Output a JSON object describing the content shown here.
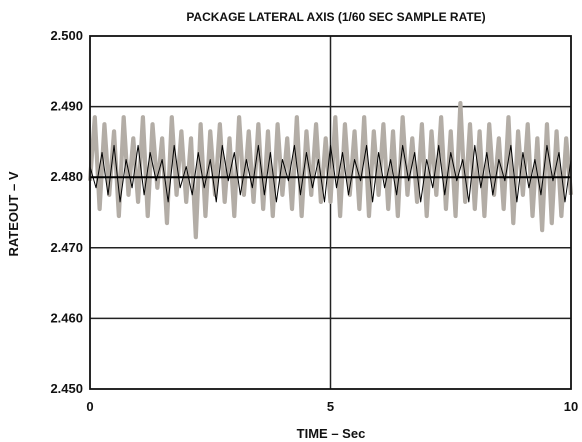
{
  "chart_data": {
    "type": "line",
    "title": "PACKAGE LATERAL AXIS (1/60 SEC SAMPLE RATE)",
    "xlabel": "TIME – Sec",
    "ylabel": "RATEOUT – V",
    "xlim": [
      0,
      10
    ],
    "ylim": [
      2.45,
      2.5
    ],
    "x_ticks": [
      0,
      5,
      10
    ],
    "x_tick_labels": [
      "0",
      "5",
      "10"
    ],
    "y_ticks": [
      2.45,
      2.46,
      2.47,
      2.48,
      2.49,
      2.5
    ],
    "y_tick_labels": [
      "2.450",
      "2.460",
      "2.470",
      "2.480",
      "2.490",
      "2.500"
    ],
    "grid": true,
    "legend": "none",
    "series": [
      {
        "color": "#b3ada6",
        "x": [
          0,
          0.1,
          0.2,
          0.3,
          0.4,
          0.5,
          0.6,
          0.7,
          0.8,
          0.9,
          1,
          1.1,
          1.2,
          1.3,
          1.4,
          1.5,
          1.6,
          1.7,
          1.8,
          1.9,
          2,
          2.1,
          2.2,
          2.3,
          2.4,
          2.5,
          2.6,
          2.7,
          2.8,
          2.9,
          3,
          3.1,
          3.2,
          3.3,
          3.4,
          3.5,
          3.6,
          3.7,
          3.8,
          3.9,
          4,
          4.1,
          4.2,
          4.3,
          4.4,
          4.5,
          4.6,
          4.7,
          4.8,
          4.9,
          5,
          5.1,
          5.2,
          5.3,
          5.4,
          5.5,
          5.6,
          5.7,
          5.8,
          5.9,
          6,
          6.1,
          6.2,
          6.3,
          6.4,
          6.5,
          6.6,
          6.7,
          6.8,
          6.9,
          7,
          7.1,
          7.2,
          7.3,
          7.4,
          7.5,
          7.6,
          7.7,
          7.8,
          7.9,
          8,
          8.1,
          8.2,
          8.3,
          8.4,
          8.5,
          8.6,
          8.7,
          8.8,
          8.9,
          9,
          9.1,
          9.2,
          9.3,
          9.4,
          9.5,
          9.6,
          9.7,
          9.8,
          9.9,
          10
        ],
        "values": [
          2.4795,
          2.4885,
          2.4755,
          2.4875,
          2.4775,
          2.4865,
          2.4745,
          2.4885,
          2.4775,
          2.4855,
          2.4765,
          2.4885,
          2.4745,
          2.4875,
          2.4785,
          2.4855,
          2.4735,
          2.4885,
          2.4775,
          2.4865,
          2.4765,
          2.4855,
          2.4715,
          2.4875,
          2.4745,
          2.4865,
          2.4775,
          2.4875,
          2.4765,
          2.4855,
          2.4745,
          2.4885,
          2.4775,
          2.4865,
          2.4765,
          2.4875,
          2.4755,
          2.4865,
          2.4745,
          2.4875,
          2.4775,
          2.4855,
          2.4755,
          2.4885,
          2.4745,
          2.4865,
          2.4775,
          2.4875,
          2.4765,
          2.4855,
          2.4765,
          2.4885,
          2.4745,
          2.4875,
          2.4775,
          2.4865,
          2.4755,
          2.4885,
          2.4745,
          2.4865,
          2.4775,
          2.4875,
          2.4755,
          2.4865,
          2.4745,
          2.4885,
          2.4775,
          2.4855,
          2.4765,
          2.4875,
          2.4745,
          2.4865,
          2.4775,
          2.4885,
          2.4755,
          2.4865,
          2.4745,
          2.4905,
          2.4765,
          2.4875,
          2.4755,
          2.4865,
          2.4745,
          2.4875,
          2.4775,
          2.4855,
          2.4755,
          2.4885,
          2.4735,
          2.4865,
          2.4775,
          2.4875,
          2.4745,
          2.4855,
          2.4725,
          2.4875,
          2.4735,
          2.4865,
          2.4745,
          2.4855,
          2.4775
        ]
      },
      {
        "color": "#000000",
        "x": [
          0,
          0.125,
          0.25,
          0.375,
          0.5,
          0.625,
          0.75,
          0.875,
          1,
          1.125,
          1.25,
          1.375,
          1.5,
          1.625,
          1.75,
          1.875,
          2,
          2.125,
          2.25,
          2.375,
          2.5,
          2.625,
          2.75,
          2.875,
          3,
          3.125,
          3.25,
          3.375,
          3.5,
          3.625,
          3.75,
          3.875,
          4,
          4.125,
          4.25,
          4.375,
          4.5,
          4.625,
          4.75,
          4.875,
          5,
          5.125,
          5.25,
          5.375,
          5.5,
          5.625,
          5.75,
          5.875,
          6,
          6.125,
          6.25,
          6.375,
          6.5,
          6.625,
          6.75,
          6.875,
          7,
          7.125,
          7.25,
          7.375,
          7.5,
          7.625,
          7.75,
          7.875,
          8,
          8.125,
          8.25,
          8.375,
          8.5,
          8.625,
          8.75,
          8.875,
          9,
          9.125,
          9.25,
          9.375,
          9.5,
          9.625,
          9.75,
          9.875,
          10
        ],
        "values": [
          2.4815,
          2.4785,
          2.4835,
          2.4775,
          2.4845,
          2.4765,
          2.4825,
          2.4785,
          2.4845,
          2.4775,
          2.4835,
          2.4795,
          2.4825,
          2.4765,
          2.4845,
          2.4785,
          2.4815,
          2.4775,
          2.4835,
          2.4785,
          2.4825,
          2.4765,
          2.4845,
          2.4795,
          2.4835,
          2.4775,
          2.4825,
          2.4785,
          2.4845,
          2.4775,
          2.4835,
          2.4765,
          2.4825,
          2.4795,
          2.4845,
          2.4775,
          2.4835,
          2.4785,
          2.4825,
          2.4765,
          2.4845,
          2.4785,
          2.4835,
          2.4775,
          2.4825,
          2.4795,
          2.4845,
          2.4765,
          2.4835,
          2.4785,
          2.4825,
          2.4775,
          2.4845,
          2.4795,
          2.4835,
          2.4765,
          2.4825,
          2.4785,
          2.4845,
          2.4775,
          2.4835,
          2.4795,
          2.4825,
          2.4765,
          2.4845,
          2.4785,
          2.4835,
          2.4775,
          2.4825,
          2.4795,
          2.4845,
          2.4765,
          2.4835,
          2.4785,
          2.4825,
          2.4775,
          2.4845,
          2.4795,
          2.4835,
          2.4765,
          2.4825
        ]
      }
    ]
  }
}
